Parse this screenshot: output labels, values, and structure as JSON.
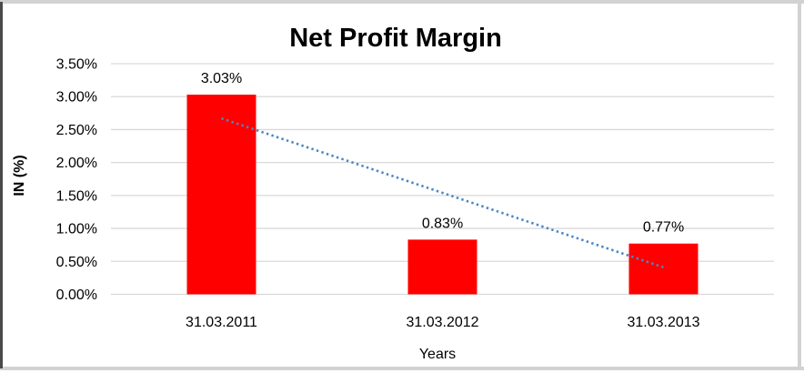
{
  "chart_data": {
    "type": "bar",
    "title": "Net Profit Margin",
    "categories": [
      "31.03.2011",
      "31.03.2012",
      "31.03.2013"
    ],
    "values": [
      3.03,
      0.83,
      0.77
    ],
    "data_labels": [
      "3.03%",
      "0.83%",
      "0.77%"
    ],
    "xlabel": "Years",
    "ylabel": "IN (%)",
    "ylim": [
      0,
      3.5
    ],
    "ytick_interval": 0.5,
    "ytick_labels": [
      "0.00%",
      "0.50%",
      "1.00%",
      "1.50%",
      "2.00%",
      "2.50%",
      "3.00%",
      "3.50%"
    ],
    "grid": true,
    "legend": "none",
    "colors": {
      "bar": "#FF0000",
      "gridline": "#D9D9D9",
      "trendline": "#4A86C8",
      "text": "#000000"
    },
    "trendline": {
      "type": "linear",
      "style": "dotted",
      "start_value": 2.67,
      "end_value": 0.41
    }
  }
}
